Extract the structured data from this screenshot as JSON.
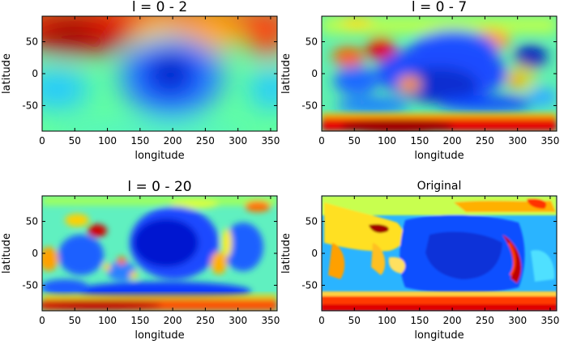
{
  "chart_data": [
    {
      "type": "heatmap",
      "title": "l = 0 - 2",
      "xlabel": "longitude",
      "ylabel": "latitude",
      "xlim": [
        0,
        360
      ],
      "ylim": [
        -90,
        90
      ],
      "xticks": [
        0,
        50,
        100,
        150,
        200,
        250,
        300,
        350
      ],
      "yticks": [
        50,
        0,
        -50
      ],
      "colormap": "jet"
    },
    {
      "type": "heatmap",
      "title": "l = 0 - 7",
      "xlabel": "longitude",
      "ylabel": "latitude",
      "xlim": [
        0,
        360
      ],
      "ylim": [
        -90,
        90
      ],
      "xticks": [
        0,
        50,
        100,
        150,
        200,
        250,
        300,
        350
      ],
      "yticks": [
        50,
        0,
        -50
      ],
      "colormap": "jet"
    },
    {
      "type": "heatmap",
      "title": "l = 0 - 20",
      "xlabel": "longitude",
      "ylabel": "latitude",
      "xlim": [
        0,
        360
      ],
      "ylim": [
        -90,
        90
      ],
      "xticks": [
        0,
        50,
        100,
        150,
        200,
        250,
        300,
        350
      ],
      "yticks": [
        50,
        0,
        -50
      ],
      "colormap": "jet"
    },
    {
      "type": "heatmap",
      "title": "Original",
      "xlabel": "longitude",
      "ylabel": "latitude",
      "xlim": [
        0,
        360
      ],
      "ylim": [
        -90,
        90
      ],
      "xticks": [
        0,
        50,
        100,
        150,
        200,
        250,
        300,
        350
      ],
      "yticks": [
        50,
        0,
        -50
      ],
      "colormap": "jet"
    }
  ],
  "colors": {
    "jet_dark_red": "#7f0000",
    "jet_red": "#ff0000",
    "jet_orange": "#ff8a00",
    "jet_yellow": "#ffee00",
    "jet_green": "#7dff7a",
    "jet_cyan": "#00d4ff",
    "jet_light_blue": "#1e6bff",
    "jet_blue": "#0019ff",
    "jet_dark_blue": "#000080"
  }
}
